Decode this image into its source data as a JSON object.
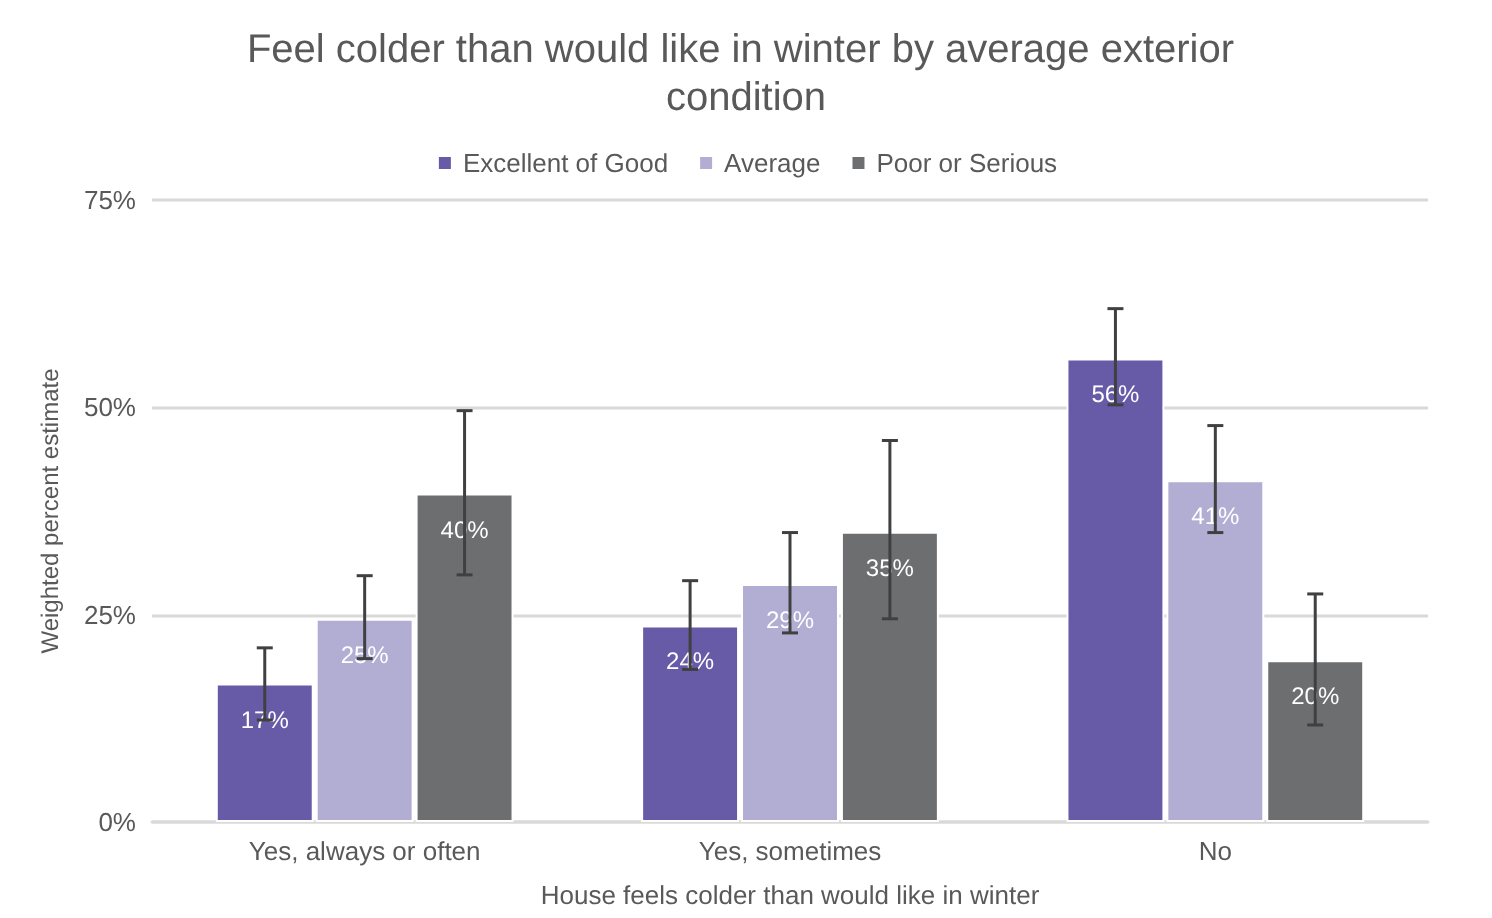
{
  "chart_data": {
    "type": "bar",
    "title": "Feel colder than would like in winter by average exterior condition",
    "xlabel": "House feels colder than would like in winter",
    "ylabel": "Weighted percent estimate",
    "categories": [
      "Yes, always or often",
      "Yes, sometimes",
      "No"
    ],
    "series": [
      {
        "name": "Excellent of Good",
        "color": "#675ba8",
        "values": [
          16.7,
          23.7,
          55.9
        ],
        "value_labels": [
          "17%",
          "24%",
          "56%"
        ],
        "errors": [
          [
            12.3,
            21.0
          ],
          [
            18.4,
            29.1
          ],
          [
            50.3,
            61.9
          ]
        ]
      },
      {
        "name": "Average",
        "color": "#b1add3",
        "values": [
          24.5,
          28.7,
          41.2
        ],
        "value_labels": [
          "25%",
          "29%",
          "41%"
        ],
        "errors": [
          [
            19.7,
            29.7
          ],
          [
            22.8,
            34.9
          ],
          [
            34.9,
            47.8
          ]
        ]
      },
      {
        "name": "Poor or Serious",
        "color": "#6d6e70",
        "values": [
          39.6,
          35.0,
          19.5
        ],
        "value_labels": [
          "40%",
          "35%",
          "20%"
        ],
        "errors": [
          [
            29.8,
            49.6
          ],
          [
            24.5,
            46.0
          ],
          [
            11.7,
            27.5
          ]
        ]
      }
    ],
    "ylim": [
      0,
      75
    ],
    "yticks": [
      {
        "value": 0,
        "label": "0%"
      },
      {
        "value": 25,
        "label": "25%"
      },
      {
        "value": 50,
        "label": "50%"
      },
      {
        "value": 75,
        "label": "75%"
      }
    ],
    "grid": "y",
    "legend": "top"
  }
}
